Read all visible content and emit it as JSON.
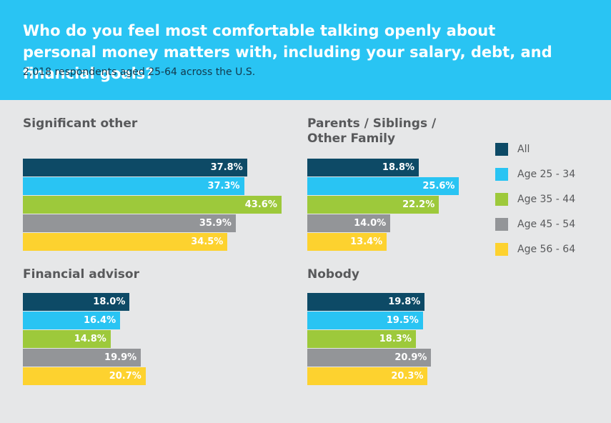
{
  "chart_data": {
    "type": "bar",
    "orientation": "horizontal",
    "title": "Who do you feel most comfortable talking openly about personal money matters with, including your salary, debt, and financial goals?",
    "subtitle": "2,018 respondents aged 25-64 across the U.S.",
    "categories": [
      "Significant other",
      "Parents / Siblings / Other Family",
      "Financial advisor",
      "Nobody"
    ],
    "series": [
      {
        "name": "All",
        "color": "#0d4a66",
        "values": [
          37.8,
          18.8,
          18.0,
          19.8
        ],
        "value_labels": [
          "37.8%",
          "18.8%",
          "18.0%",
          "19.8%"
        ]
      },
      {
        "name": "Age 25 - 34",
        "color": "#29c4f3",
        "values": [
          37.3,
          25.6,
          16.4,
          19.5
        ],
        "value_labels": [
          "37.3%",
          "25.6%",
          "16.4%",
          "19.5%"
        ]
      },
      {
        "name": "Age 35 - 44",
        "color": "#9dc93b",
        "values": [
          43.6,
          22.2,
          14.8,
          18.3
        ],
        "value_labels": [
          "43.6%",
          "22.2%",
          "14.8%",
          "18.3%"
        ]
      },
      {
        "name": "Age 45 - 54",
        "color": "#939598",
        "values": [
          35.9,
          14.0,
          19.9,
          20.9
        ],
        "value_labels": [
          "35.9%",
          "14.0%",
          "19.9%",
          "20.9%"
        ]
      },
      {
        "name": "Age 56 - 64",
        "color": "#fdd22f",
        "values": [
          34.5,
          13.4,
          20.7,
          20.3
        ],
        "value_labels": [
          "34.5%",
          "13.4%",
          "20.7%",
          "20.3%"
        ]
      }
    ],
    "legend": "right"
  }
}
